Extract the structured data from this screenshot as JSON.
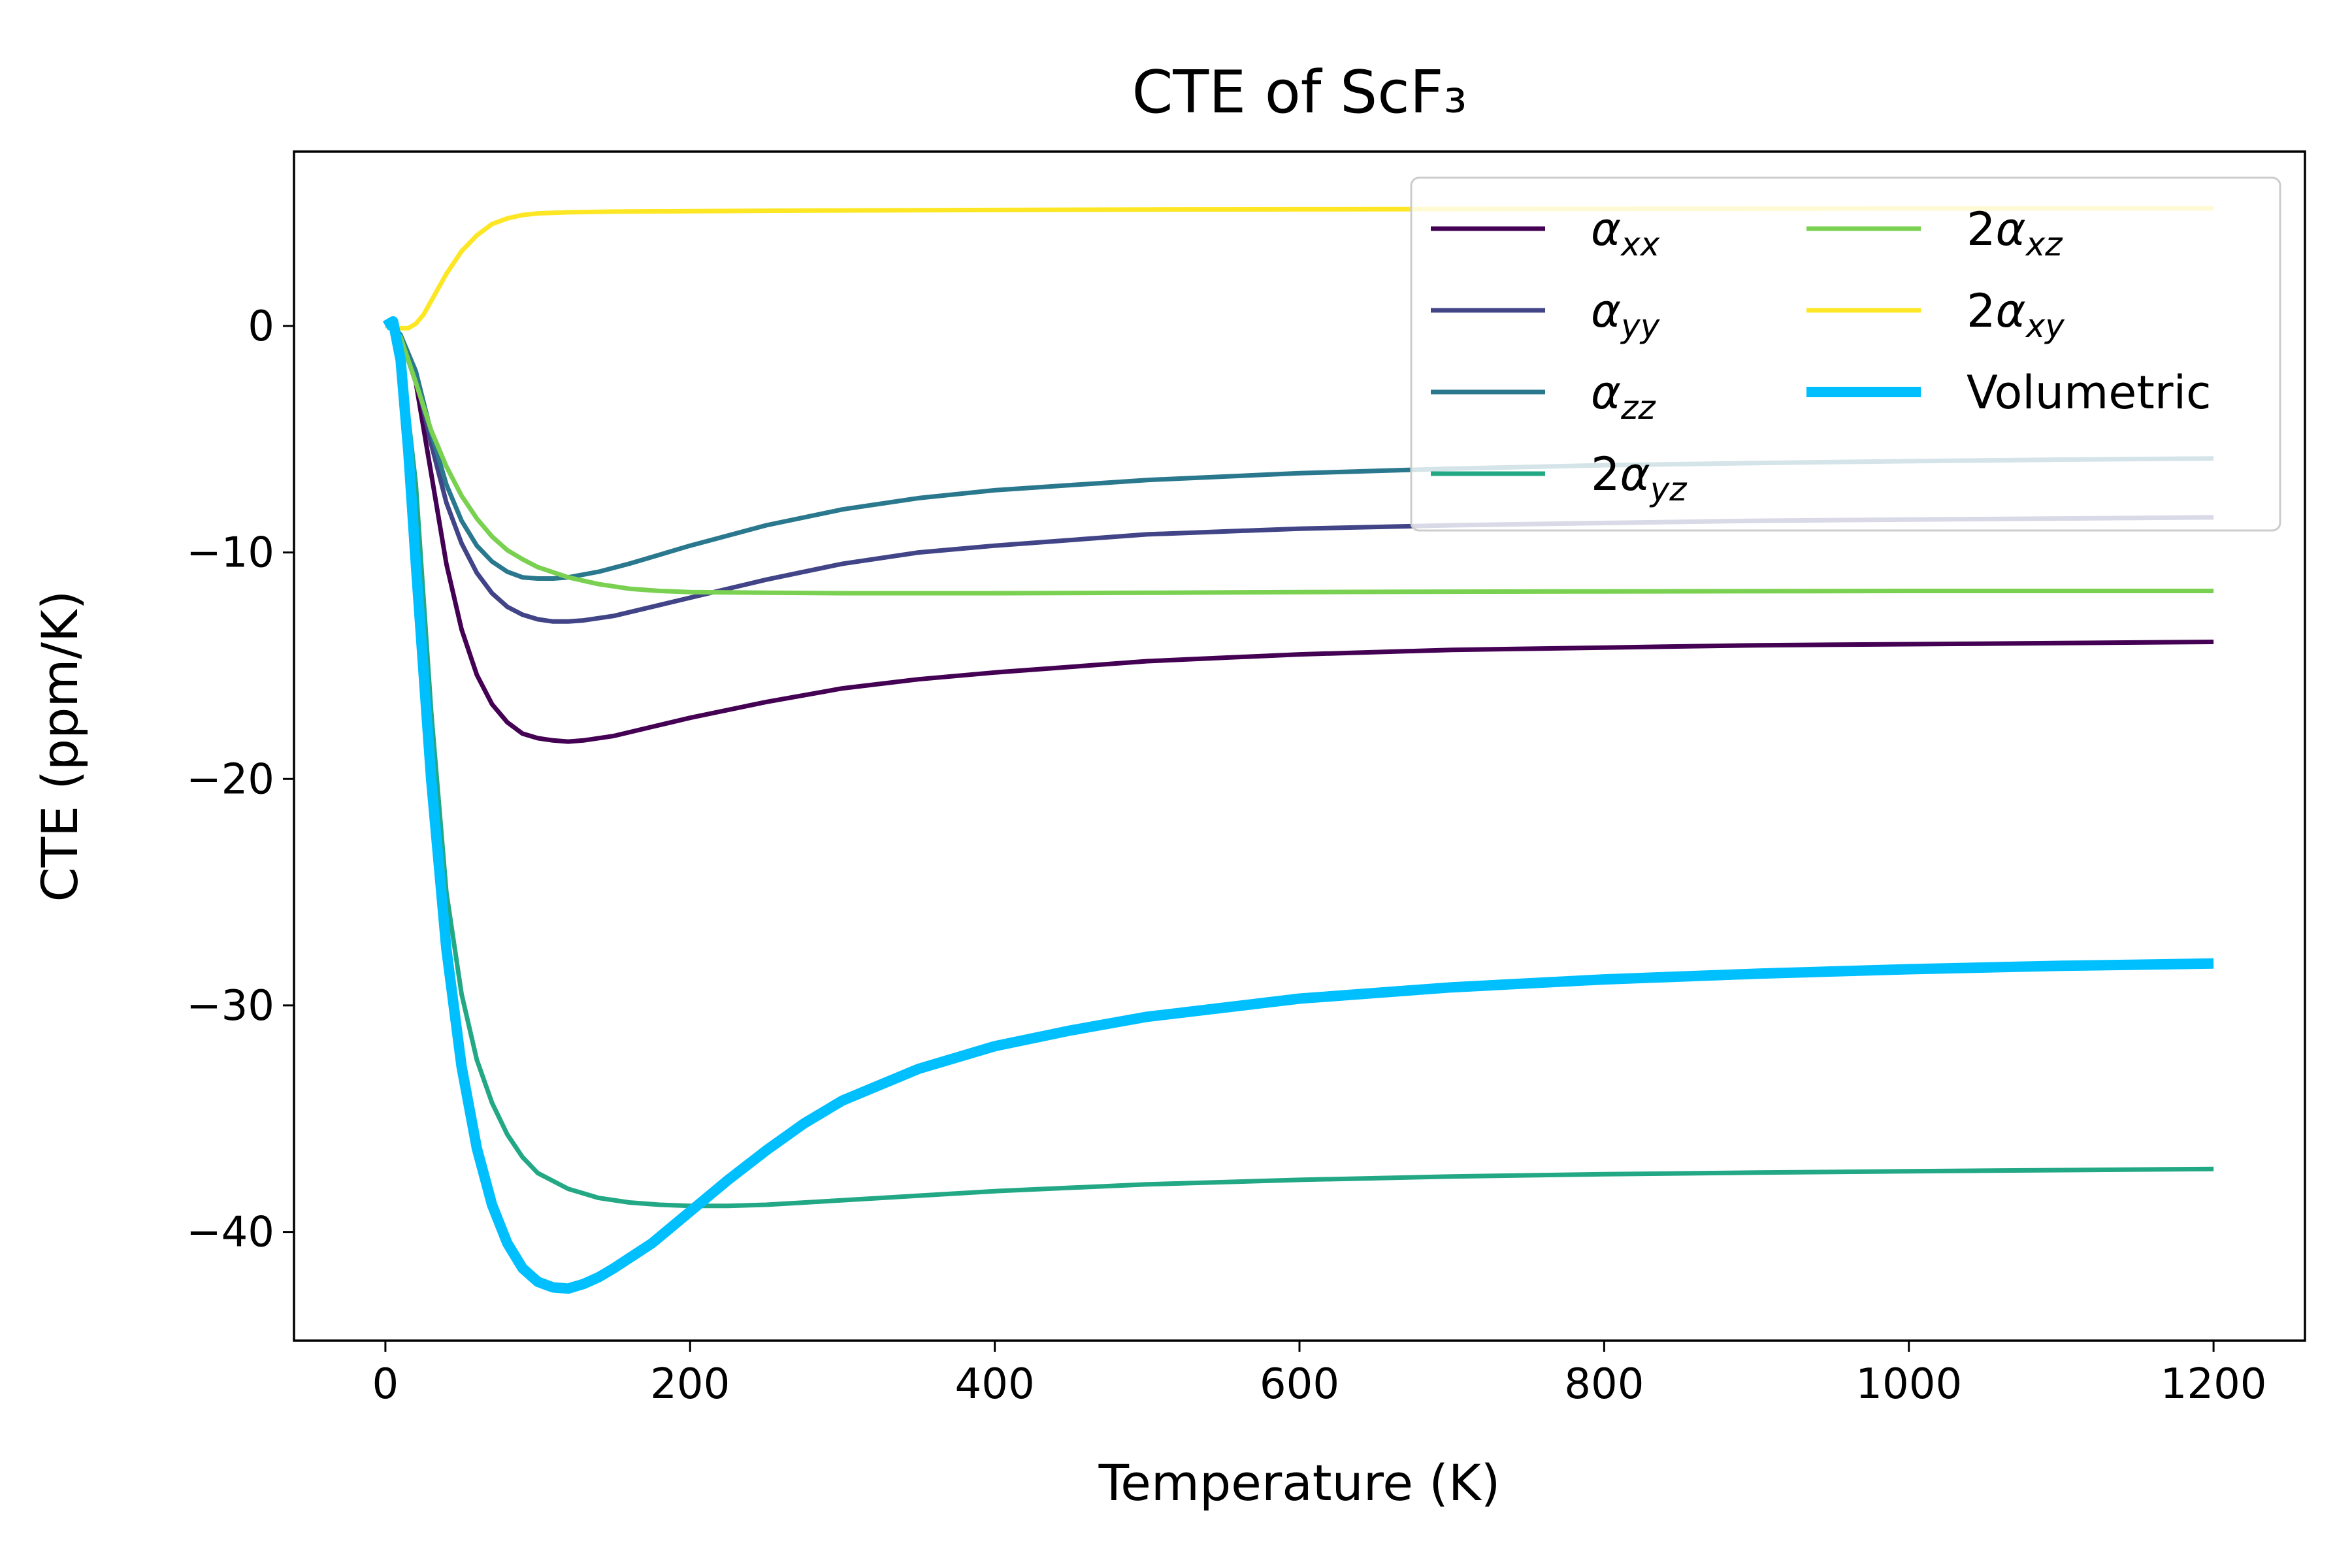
{
  "chart_data": {
    "type": "line",
    "title": "CTE of ScF₃",
    "xlabel": "Temperature (K)",
    "ylabel": "CTE (ppm/K)",
    "xlim": [
      -60,
      1260
    ],
    "ylim": [
      -44.8,
      7.7
    ],
    "xticks": [
      0,
      200,
      400,
      600,
      800,
      1000,
      1200
    ],
    "xtick_labels": [
      "0",
      "200",
      "400",
      "600",
      "800",
      "1000",
      "1200"
    ],
    "yticks": [
      0,
      -10,
      -20,
      -30,
      -40
    ],
    "ytick_labels": [
      "0",
      "−10",
      "−20",
      "−30",
      "−40"
    ],
    "grid": false,
    "legend": {
      "placement": "upper right",
      "columns": 2
    },
    "series": [
      {
        "name": "αxx",
        "prefix": "",
        "symbol": "α",
        "subscript": "xx",
        "color": "#440154",
        "linewidth": "normal",
        "points": [
          [
            0,
            0
          ],
          [
            5,
            0.0
          ],
          [
            10,
            -0.5
          ],
          [
            20,
            -2.5
          ],
          [
            30,
            -6.5
          ],
          [
            40,
            -10.5
          ],
          [
            50,
            -13.4
          ],
          [
            60,
            -15.4
          ],
          [
            70,
            -16.7
          ],
          [
            80,
            -17.5
          ],
          [
            90,
            -18.0
          ],
          [
            100,
            -18.2
          ],
          [
            110,
            -18.3
          ],
          [
            120,
            -18.35
          ],
          [
            130,
            -18.3
          ],
          [
            150,
            -18.1
          ],
          [
            175,
            -17.7
          ],
          [
            200,
            -17.3
          ],
          [
            250,
            -16.6
          ],
          [
            300,
            -16.0
          ],
          [
            350,
            -15.6
          ],
          [
            400,
            -15.3
          ],
          [
            500,
            -14.8
          ],
          [
            600,
            -14.5
          ],
          [
            700,
            -14.3
          ],
          [
            800,
            -14.2
          ],
          [
            900,
            -14.1
          ],
          [
            1000,
            -14.05
          ],
          [
            1100,
            -14.0
          ],
          [
            1200,
            -13.95
          ]
        ]
      },
      {
        "name": "αyy",
        "prefix": "",
        "symbol": "α",
        "subscript": "yy",
        "color": "#414487",
        "linewidth": "normal",
        "points": [
          [
            0,
            0
          ],
          [
            5,
            0.0
          ],
          [
            10,
            -0.4
          ],
          [
            20,
            -2.2
          ],
          [
            30,
            -5.2
          ],
          [
            40,
            -7.8
          ],
          [
            50,
            -9.6
          ],
          [
            60,
            -10.9
          ],
          [
            70,
            -11.8
          ],
          [
            80,
            -12.4
          ],
          [
            90,
            -12.75
          ],
          [
            100,
            -12.95
          ],
          [
            110,
            -13.05
          ],
          [
            120,
            -13.05
          ],
          [
            130,
            -13.0
          ],
          [
            150,
            -12.8
          ],
          [
            175,
            -12.4
          ],
          [
            200,
            -12.0
          ],
          [
            250,
            -11.2
          ],
          [
            300,
            -10.5
          ],
          [
            350,
            -10.0
          ],
          [
            400,
            -9.7
          ],
          [
            500,
            -9.2
          ],
          [
            600,
            -8.95
          ],
          [
            700,
            -8.8
          ],
          [
            800,
            -8.7
          ],
          [
            900,
            -8.6
          ],
          [
            1000,
            -8.55
          ],
          [
            1100,
            -8.5
          ],
          [
            1200,
            -8.45
          ]
        ]
      },
      {
        "name": "αzz",
        "prefix": "",
        "symbol": "α",
        "subscript": "zz",
        "color": "#2a788e",
        "linewidth": "normal",
        "points": [
          [
            0,
            0
          ],
          [
            5,
            0.0
          ],
          [
            10,
            -0.4
          ],
          [
            20,
            -2.0
          ],
          [
            30,
            -4.7
          ],
          [
            40,
            -7.0
          ],
          [
            50,
            -8.6
          ],
          [
            60,
            -9.7
          ],
          [
            70,
            -10.4
          ],
          [
            80,
            -10.85
          ],
          [
            90,
            -11.1
          ],
          [
            100,
            -11.15
          ],
          [
            110,
            -11.15
          ],
          [
            120,
            -11.1
          ],
          [
            140,
            -10.85
          ],
          [
            160,
            -10.5
          ],
          [
            180,
            -10.1
          ],
          [
            200,
            -9.7
          ],
          [
            250,
            -8.8
          ],
          [
            300,
            -8.1
          ],
          [
            350,
            -7.6
          ],
          [
            400,
            -7.25
          ],
          [
            500,
            -6.8
          ],
          [
            600,
            -6.5
          ],
          [
            700,
            -6.3
          ],
          [
            800,
            -6.15
          ],
          [
            900,
            -6.05
          ],
          [
            1000,
            -5.97
          ],
          [
            1100,
            -5.9
          ],
          [
            1200,
            -5.85
          ]
        ]
      },
      {
        "name": "2αyz",
        "prefix": "2",
        "symbol": "α",
        "subscript": "yz",
        "color": "#22a884",
        "linewidth": "normal",
        "points": [
          [
            0,
            0
          ],
          [
            5,
            0.0
          ],
          [
            10,
            -1.0
          ],
          [
            20,
            -7.0
          ],
          [
            30,
            -17.0
          ],
          [
            40,
            -25.0
          ],
          [
            50,
            -29.5
          ],
          [
            60,
            -32.4
          ],
          [
            70,
            -34.3
          ],
          [
            80,
            -35.7
          ],
          [
            90,
            -36.7
          ],
          [
            100,
            -37.4
          ],
          [
            120,
            -38.1
          ],
          [
            140,
            -38.5
          ],
          [
            160,
            -38.7
          ],
          [
            180,
            -38.8
          ],
          [
            200,
            -38.85
          ],
          [
            225,
            -38.85
          ],
          [
            250,
            -38.8
          ],
          [
            300,
            -38.6
          ],
          [
            350,
            -38.4
          ],
          [
            400,
            -38.2
          ],
          [
            500,
            -37.9
          ],
          [
            600,
            -37.7
          ],
          [
            700,
            -37.55
          ],
          [
            800,
            -37.45
          ],
          [
            900,
            -37.38
          ],
          [
            1000,
            -37.32
          ],
          [
            1100,
            -37.27
          ],
          [
            1200,
            -37.22
          ]
        ]
      },
      {
        "name": "2αxz",
        "prefix": "2",
        "symbol": "α",
        "subscript": "xz",
        "color": "#7ad151",
        "linewidth": "normal",
        "points": [
          [
            0,
            0
          ],
          [
            5,
            0.0
          ],
          [
            10,
            -0.5
          ],
          [
            20,
            -2.5
          ],
          [
            30,
            -4.6
          ],
          [
            40,
            -6.2
          ],
          [
            50,
            -7.5
          ],
          [
            60,
            -8.5
          ],
          [
            70,
            -9.3
          ],
          [
            80,
            -9.9
          ],
          [
            90,
            -10.3
          ],
          [
            100,
            -10.65
          ],
          [
            120,
            -11.1
          ],
          [
            140,
            -11.4
          ],
          [
            160,
            -11.6
          ],
          [
            180,
            -11.7
          ],
          [
            200,
            -11.75
          ],
          [
            250,
            -11.78
          ],
          [
            300,
            -11.8
          ],
          [
            400,
            -11.8
          ],
          [
            500,
            -11.78
          ],
          [
            600,
            -11.75
          ],
          [
            700,
            -11.73
          ],
          [
            800,
            -11.72
          ],
          [
            900,
            -11.71
          ],
          [
            1000,
            -11.7
          ],
          [
            1100,
            -11.7
          ],
          [
            1200,
            -11.7
          ]
        ]
      },
      {
        "name": "2αxy",
        "prefix": "2",
        "symbol": "α",
        "subscript": "xy",
        "color": "#fde725",
        "linewidth": "normal",
        "points": [
          [
            0,
            0
          ],
          [
            5,
            0.0
          ],
          [
            10,
            -0.1
          ],
          [
            15,
            -0.1
          ],
          [
            20,
            0.1
          ],
          [
            25,
            0.5
          ],
          [
            30,
            1.1
          ],
          [
            40,
            2.3
          ],
          [
            50,
            3.3
          ],
          [
            60,
            4.0
          ],
          [
            70,
            4.5
          ],
          [
            80,
            4.75
          ],
          [
            90,
            4.9
          ],
          [
            100,
            4.97
          ],
          [
            120,
            5.02
          ],
          [
            150,
            5.05
          ],
          [
            200,
            5.07
          ],
          [
            300,
            5.1
          ],
          [
            400,
            5.12
          ],
          [
            500,
            5.14
          ],
          [
            600,
            5.15
          ],
          [
            700,
            5.16
          ],
          [
            800,
            5.17
          ],
          [
            900,
            5.18
          ],
          [
            1000,
            5.19
          ],
          [
            1100,
            5.2
          ],
          [
            1200,
            5.2
          ]
        ]
      },
      {
        "name": "Volumetric",
        "prefix": "",
        "symbol": "",
        "subscript": "",
        "color": "#00bfff",
        "linewidth": "thick",
        "points": [
          [
            0,
            0
          ],
          [
            5,
            0.2
          ],
          [
            10,
            -1.5
          ],
          [
            15,
            -5.5
          ],
          [
            20,
            -10.5
          ],
          [
            30,
            -20.0
          ],
          [
            40,
            -27.5
          ],
          [
            50,
            -32.7
          ],
          [
            60,
            -36.3
          ],
          [
            70,
            -38.8
          ],
          [
            80,
            -40.5
          ],
          [
            90,
            -41.6
          ],
          [
            100,
            -42.2
          ],
          [
            110,
            -42.45
          ],
          [
            120,
            -42.5
          ],
          [
            130,
            -42.3
          ],
          [
            140,
            -42.0
          ],
          [
            150,
            -41.6
          ],
          [
            175,
            -40.5
          ],
          [
            200,
            -39.1
          ],
          [
            225,
            -37.7
          ],
          [
            250,
            -36.4
          ],
          [
            275,
            -35.2
          ],
          [
            300,
            -34.2
          ],
          [
            350,
            -32.8
          ],
          [
            400,
            -31.8
          ],
          [
            450,
            -31.1
          ],
          [
            500,
            -30.5
          ],
          [
            600,
            -29.7
          ],
          [
            700,
            -29.2
          ],
          [
            800,
            -28.85
          ],
          [
            900,
            -28.6
          ],
          [
            1000,
            -28.4
          ],
          [
            1100,
            -28.25
          ],
          [
            1200,
            -28.15
          ]
        ]
      }
    ]
  }
}
